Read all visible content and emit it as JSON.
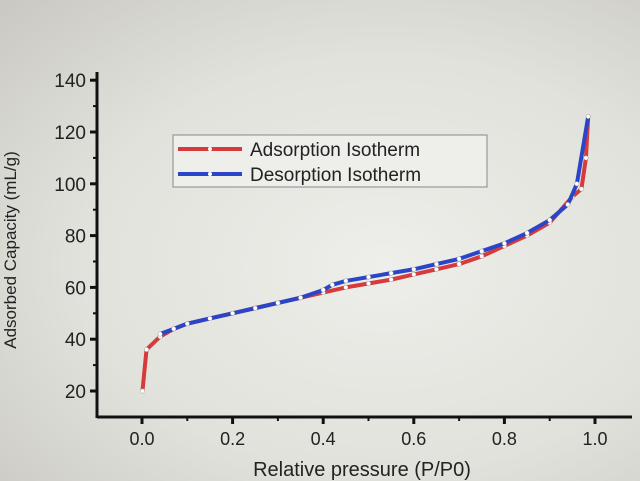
{
  "chart_data": {
    "type": "line",
    "title": "",
    "xlabel": "Relative pressure (P/P0)",
    "ylabel": "Adsorbed Capacity (mL/g)",
    "xlim": [
      -0.1,
      1.05
    ],
    "ylim": [
      14,
      148
    ],
    "xticks": [
      "0.0",
      "0.2",
      "0.4",
      "0.6",
      "0.8",
      "1.0"
    ],
    "yticks": [
      "20",
      "40",
      "60",
      "80",
      "100",
      "120",
      "140"
    ],
    "grid": false,
    "legend": "top-left",
    "series": [
      {
        "name": "Adsorption Isotherm",
        "color": "#d63a3a",
        "x": [
          0.001,
          0.01,
          0.04,
          0.07,
          0.1,
          0.15,
          0.2,
          0.25,
          0.3,
          0.35,
          0.4,
          0.45,
          0.5,
          0.55,
          0.6,
          0.65,
          0.7,
          0.75,
          0.8,
          0.85,
          0.9,
          0.95,
          0.97,
          0.98,
          0.985
        ],
        "y": [
          20,
          36,
          41,
          44,
          46,
          48,
          50,
          52,
          54,
          56,
          58,
          60,
          61.5,
          63,
          65,
          67,
          69,
          72,
          76,
          80,
          85,
          95,
          98,
          110,
          126
        ]
      },
      {
        "name": "Desorption Isotherm",
        "color": "#2a45c8",
        "x": [
          0.985,
          0.96,
          0.94,
          0.9,
          0.85,
          0.8,
          0.75,
          0.7,
          0.65,
          0.6,
          0.55,
          0.5,
          0.45,
          0.42,
          0.4,
          0.35,
          0.3,
          0.25,
          0.2,
          0.15,
          0.1,
          0.07,
          0.04
        ],
        "y": [
          126,
          100,
          92,
          86,
          81,
          77,
          74,
          71,
          69,
          67,
          65.5,
          64,
          62.5,
          61,
          59,
          56,
          54,
          52,
          50,
          48,
          46,
          44,
          42
        ]
      }
    ]
  }
}
